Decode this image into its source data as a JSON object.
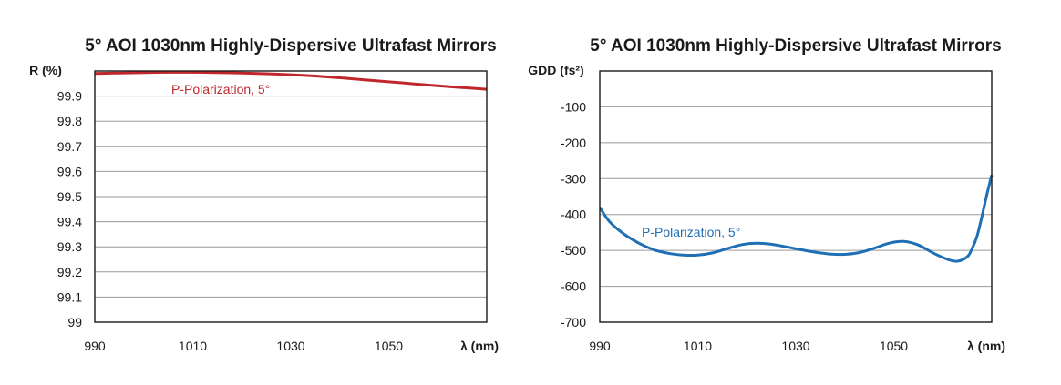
{
  "chart_data": [
    {
      "type": "line",
      "title": "5° AOI 1030nm Highly-Dispersive Ultrafast Mirrors",
      "ylabel": "R (%)",
      "xlabel": "λ (nm)",
      "xlim": [
        990,
        1070
      ],
      "ylim": [
        99,
        100
      ],
      "x_ticks": [
        990,
        1010,
        1030,
        1050
      ],
      "x_tick_labels": [
        "990",
        "1010",
        "1030",
        "1050"
      ],
      "y_ticks": [
        99,
        99.1,
        99.2,
        99.3,
        99.4,
        99.5,
        99.6,
        99.7,
        99.8,
        99.9
      ],
      "y_tick_labels": [
        "99",
        "99.1",
        "99.2",
        "99.3",
        "99.4",
        "99.5",
        "99.6",
        "99.7",
        "99.8",
        "99.9"
      ],
      "grid": true,
      "series": [
        {
          "name": "P-Polarization, 5°",
          "color": "#c0272d",
          "x": [
            990,
            995,
            1000,
            1005,
            1010,
            1015,
            1020,
            1025,
            1030,
            1035,
            1040,
            1045,
            1050,
            1055,
            1060,
            1065,
            1070
          ],
          "y": [
            99.99,
            99.992,
            99.994,
            99.995,
            99.995,
            99.994,
            99.992,
            99.989,
            99.985,
            99.98,
            99.973,
            99.965,
            99.957,
            99.949,
            99.941,
            99.934,
            99.927
          ]
        }
      ]
    },
    {
      "type": "line",
      "title": "5° AOI 1030nm Highly-Dispersive Ultrafast Mirrors",
      "ylabel": "GDD (fs²)",
      "xlabel": "λ (nm)",
      "xlim": [
        990,
        1070
      ],
      "ylim": [
        -700,
        0
      ],
      "x_ticks": [
        990,
        1010,
        1030,
        1050
      ],
      "x_tick_labels": [
        "990",
        "1010",
        "1030",
        "1050"
      ],
      "y_ticks": [
        -100,
        -200,
        -300,
        -400,
        -500,
        -600,
        -700
      ],
      "y_tick_labels": [
        "-100",
        "-200",
        "-300",
        "-400",
        "-500",
        "-600",
        "-700"
      ],
      "grid": true,
      "series": [
        {
          "name": "P-Polarization, 5°",
          "color": "#1f6fb5",
          "x": [
            990,
            992,
            995,
            998,
            1001,
            1004,
            1007,
            1010,
            1013,
            1016,
            1019,
            1022,
            1025,
            1028,
            1031,
            1034,
            1037,
            1040,
            1043,
            1046,
            1049,
            1052,
            1055,
            1058,
            1061,
            1063,
            1065,
            1066,
            1067,
            1068,
            1069,
            1070
          ],
          "y": [
            -380,
            -420,
            -455,
            -480,
            -498,
            -508,
            -513,
            -513,
            -507,
            -495,
            -484,
            -480,
            -483,
            -490,
            -498,
            -505,
            -510,
            -511,
            -506,
            -494,
            -480,
            -475,
            -485,
            -507,
            -525,
            -530,
            -518,
            -495,
            -460,
            -405,
            -345,
            -290
          ]
        }
      ]
    }
  ]
}
